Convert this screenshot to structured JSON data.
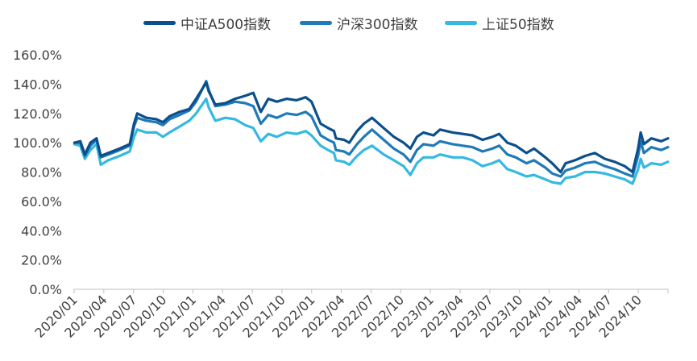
{
  "chart_data": {
    "type": "line",
    "title": "",
    "xlabel": "",
    "ylabel": "",
    "ylim": [
      0,
      160
    ],
    "y_ticks": [
      "0.0%",
      "20.0%",
      "40.0%",
      "60.0%",
      "80.0%",
      "100.0%",
      "120.0%",
      "140.0%",
      "160.0%"
    ],
    "x_range": [
      "2020-01-01",
      "2024-12-31"
    ],
    "x_ticks": [
      "2020/01",
      "2020/04",
      "2020/07",
      "2020/10",
      "2021/01",
      "2021/04",
      "2021/07",
      "2021/10",
      "2022/01",
      "2022/04",
      "2022/07",
      "2022/10",
      "2023/01",
      "2023/04",
      "2023/07",
      "2023/10",
      "2024/01",
      "2024/04",
      "2024/07",
      "2024/10"
    ],
    "grid": false,
    "legend_position": "top",
    "series": [
      {
        "name": "中证A500指数",
        "color": "#0b4f8c",
        "x": [
          "2020-01-02",
          "2020-01-20",
          "2020-02-03",
          "2020-02-20",
          "2020-03-10",
          "2020-03-23",
          "2020-04-15",
          "2020-05-20",
          "2020-06-20",
          "2020-07-03",
          "2020-07-13",
          "2020-08-10",
          "2020-09-10",
          "2020-09-30",
          "2020-10-20",
          "2020-11-20",
          "2020-12-20",
          "2021-01-10",
          "2021-02-10",
          "2021-02-18",
          "2021-03-10",
          "2021-04-10",
          "2021-05-10",
          "2021-06-10",
          "2021-07-05",
          "2021-07-28",
          "2021-08-20",
          "2021-09-15",
          "2021-10-15",
          "2021-11-15",
          "2021-12-13",
          "2021-12-31",
          "2022-01-28",
          "2022-02-20",
          "2022-03-10",
          "2022-03-16",
          "2022-04-10",
          "2022-04-26",
          "2022-05-20",
          "2022-06-10",
          "2022-07-05",
          "2022-08-10",
          "2022-09-10",
          "2022-10-10",
          "2022-10-31",
          "2022-11-20",
          "2022-12-10",
          "2023-01-10",
          "2023-01-30",
          "2023-03-10",
          "2023-04-10",
          "2023-05-10",
          "2023-06-10",
          "2023-07-10",
          "2023-07-31",
          "2023-08-25",
          "2023-09-20",
          "2023-10-23",
          "2023-11-15",
          "2023-12-20",
          "2024-01-10",
          "2024-02-05",
          "2024-02-20",
          "2024-03-20",
          "2024-04-20",
          "2024-05-20",
          "2024-06-20",
          "2024-07-20",
          "2024-08-20",
          "2024-09-13",
          "2024-09-30",
          "2024-10-08",
          "2024-10-18",
          "2024-11-10",
          "2024-12-10",
          "2024-12-31"
        ],
        "values": [
          100,
          101,
          92,
          100,
          103,
          91,
          93,
          96,
          99,
          113,
          120,
          117,
          116,
          114,
          118,
          121,
          123,
          130,
          141,
          135,
          126,
          127,
          130,
          132,
          134,
          121,
          130,
          128,
          130,
          129,
          131,
          128,
          113,
          110,
          108,
          103,
          102,
          100,
          108,
          113,
          117,
          110,
          104,
          100,
          96,
          104,
          107,
          105,
          109,
          107,
          106,
          105,
          102,
          104,
          106,
          100,
          98,
          93,
          96,
          90,
          86,
          80,
          86,
          88,
          91,
          93,
          89,
          87,
          84,
          80,
          96,
          107,
          99,
          103,
          101,
          103
        ]
      },
      {
        "name": "沪深300指数",
        "color": "#1f7ab8",
        "x": [
          "2020-01-02",
          "2020-01-20",
          "2020-02-03",
          "2020-02-20",
          "2020-03-10",
          "2020-03-23",
          "2020-04-15",
          "2020-05-20",
          "2020-06-20",
          "2020-07-03",
          "2020-07-13",
          "2020-08-10",
          "2020-09-10",
          "2020-09-30",
          "2020-10-20",
          "2020-11-20",
          "2020-12-20",
          "2021-01-10",
          "2021-02-10",
          "2021-02-18",
          "2021-03-10",
          "2021-04-10",
          "2021-05-10",
          "2021-06-10",
          "2021-07-05",
          "2021-07-28",
          "2021-08-20",
          "2021-09-15",
          "2021-10-15",
          "2021-11-15",
          "2021-12-13",
          "2021-12-31",
          "2022-01-28",
          "2022-02-20",
          "2022-03-10",
          "2022-03-16",
          "2022-04-10",
          "2022-04-26",
          "2022-05-20",
          "2022-06-10",
          "2022-07-05",
          "2022-08-10",
          "2022-09-10",
          "2022-10-10",
          "2022-10-31",
          "2022-11-20",
          "2022-12-10",
          "2023-01-10",
          "2023-01-30",
          "2023-03-10",
          "2023-04-10",
          "2023-05-10",
          "2023-06-10",
          "2023-07-10",
          "2023-07-31",
          "2023-08-25",
          "2023-09-20",
          "2023-10-23",
          "2023-11-15",
          "2023-12-20",
          "2024-01-10",
          "2024-02-05",
          "2024-02-20",
          "2024-03-20",
          "2024-04-20",
          "2024-05-20",
          "2024-06-20",
          "2024-07-20",
          "2024-08-20",
          "2024-09-13",
          "2024-09-30",
          "2024-10-08",
          "2024-10-18",
          "2024-11-10",
          "2024-12-10",
          "2024-12-31"
        ],
        "values": [
          100,
          100,
          91,
          98,
          102,
          90,
          92,
          95,
          98,
          111,
          117,
          115,
          114,
          112,
          116,
          119,
          122,
          128,
          142,
          136,
          125,
          126,
          128,
          127,
          125,
          113,
          119,
          117,
          120,
          119,
          121,
          118,
          105,
          102,
          100,
          95,
          94,
          92,
          99,
          104,
          109,
          102,
          96,
          92,
          87,
          95,
          99,
          98,
          101,
          99,
          98,
          97,
          94,
          96,
          98,
          92,
          90,
          86,
          88,
          83,
          79,
          77,
          81,
          83,
          86,
          87,
          84,
          82,
          79,
          77,
          91,
          101,
          93,
          97,
          95,
          97
        ]
      },
      {
        "name": "上证50指数",
        "color": "#35b9e0",
        "x": [
          "2020-01-02",
          "2020-01-20",
          "2020-02-03",
          "2020-02-20",
          "2020-03-10",
          "2020-03-23",
          "2020-04-15",
          "2020-05-20",
          "2020-06-20",
          "2020-07-03",
          "2020-07-13",
          "2020-08-10",
          "2020-09-10",
          "2020-09-30",
          "2020-10-20",
          "2020-11-20",
          "2020-12-20",
          "2021-01-10",
          "2021-02-10",
          "2021-02-18",
          "2021-03-10",
          "2021-04-10",
          "2021-05-10",
          "2021-06-10",
          "2021-07-05",
          "2021-07-28",
          "2021-08-20",
          "2021-09-15",
          "2021-10-15",
          "2021-11-15",
          "2021-12-13",
          "2021-12-31",
          "2022-01-28",
          "2022-02-20",
          "2022-03-10",
          "2022-03-16",
          "2022-04-10",
          "2022-04-26",
          "2022-05-20",
          "2022-06-10",
          "2022-07-05",
          "2022-08-10",
          "2022-09-10",
          "2022-10-10",
          "2022-10-31",
          "2022-11-20",
          "2022-12-10",
          "2023-01-10",
          "2023-01-30",
          "2023-03-10",
          "2023-04-10",
          "2023-05-10",
          "2023-06-10",
          "2023-07-10",
          "2023-07-31",
          "2023-08-25",
          "2023-09-20",
          "2023-10-23",
          "2023-11-15",
          "2023-12-20",
          "2024-01-10",
          "2024-02-05",
          "2024-02-20",
          "2024-03-20",
          "2024-04-20",
          "2024-05-20",
          "2024-06-20",
          "2024-07-20",
          "2024-08-20",
          "2024-09-13",
          "2024-09-30",
          "2024-10-08",
          "2024-10-18",
          "2024-11-10",
          "2024-12-10",
          "2024-12-31"
        ],
        "values": [
          99,
          98,
          89,
          95,
          99,
          85,
          88,
          91,
          94,
          104,
          109,
          107,
          107,
          104,
          107,
          111,
          115,
          120,
          130,
          124,
          115,
          117,
          116,
          112,
          110,
          101,
          106,
          104,
          107,
          106,
          108,
          105,
          98,
          95,
          93,
          88,
          87,
          85,
          91,
          95,
          98,
          92,
          88,
          84,
          78,
          86,
          90,
          90,
          92,
          90,
          90,
          88,
          84,
          86,
          88,
          82,
          80,
          77,
          78,
          75,
          73,
          72,
          76,
          77,
          80,
          80,
          79,
          77,
          75,
          72,
          82,
          89,
          83,
          86,
          85,
          87
        ]
      }
    ]
  }
}
